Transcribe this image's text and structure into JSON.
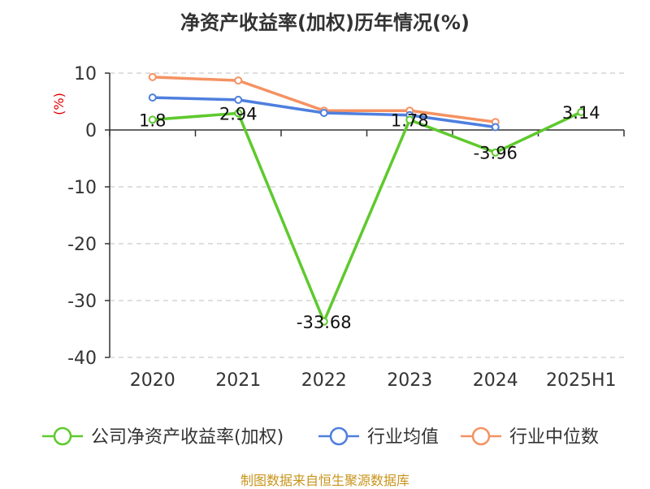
{
  "colors": {
    "series_company": "#5ec92d",
    "series_industry_avg": "#4e7fde",
    "series_industry_median": "#f59262",
    "grid": "#cccccc",
    "axis": "#333333",
    "unit": "#e00000",
    "source": "#c8941c"
  },
  "source_text": "制图数据来自恒生聚源数据库",
  "chart_data": {
    "type": "line",
    "title": "净资产收益率(加权)历年情况(%)",
    "ylabel": "(%)",
    "xlabel": "",
    "categories": [
      "2020",
      "2021",
      "2022",
      "2023",
      "2024",
      "2025H1"
    ],
    "ylim": [
      -40,
      10
    ],
    "yticks": [
      10,
      0,
      -10,
      -20,
      -30,
      -40
    ],
    "grid": true,
    "legend_position": "bottom",
    "series": [
      {
        "name": "公司净资产收益率(加权)",
        "color": "#5ec92d",
        "values": [
          1.8,
          2.94,
          -33.68,
          1.78,
          -3.96,
          3.14
        ],
        "labels": [
          "1.8",
          "2.94",
          "-33.68",
          "1.78",
          "-3.96",
          "3.14"
        ]
      },
      {
        "name": "行业均值",
        "color": "#4e7fde",
        "values": [
          5.7,
          5.3,
          3.0,
          2.6,
          0.5,
          null
        ]
      },
      {
        "name": "行业中位数",
        "color": "#f59262",
        "values": [
          9.3,
          8.7,
          3.4,
          3.4,
          1.4,
          null
        ]
      }
    ]
  }
}
